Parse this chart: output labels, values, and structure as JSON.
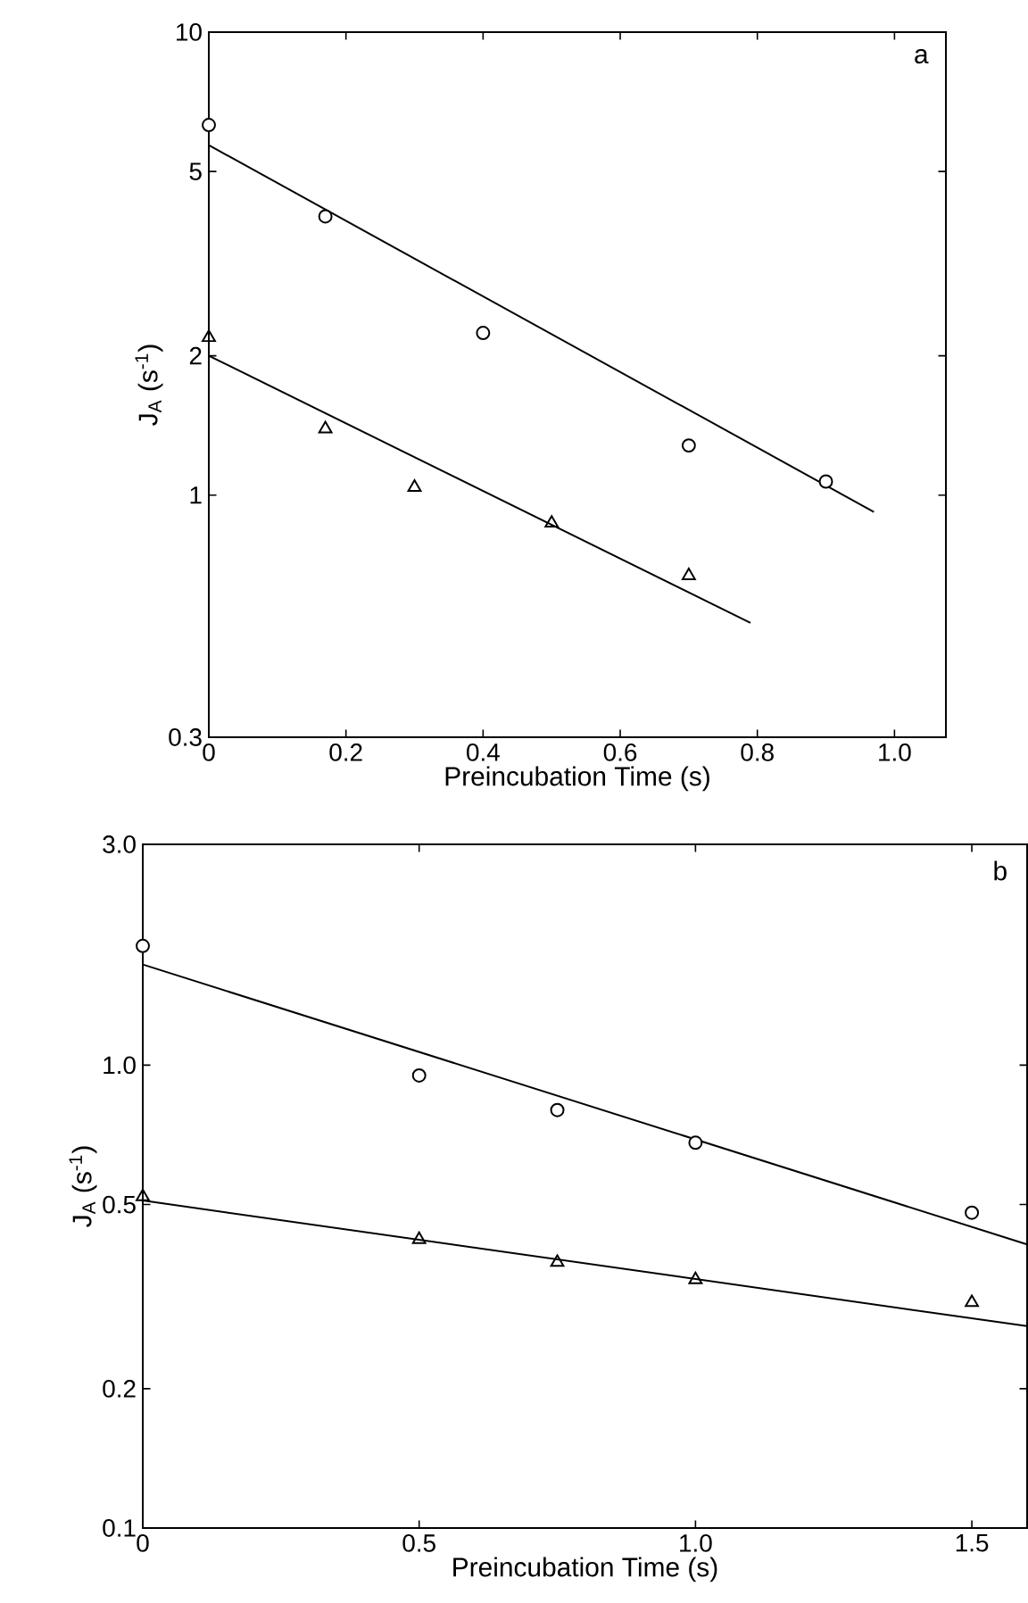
{
  "chart_data": [
    {
      "type": "scatter",
      "xlabel": "Preincubation Time (s)",
      "ylabel": "J$_{A}$ (s$^{-1}$)",
      "log": "y",
      "grid": false,
      "xlim": [
        0,
        1.075
      ],
      "ylim": [
        0.3,
        10
      ],
      "xticks": [
        0,
        0.2,
        0.4,
        0.6,
        0.8,
        {
          "value": 1,
          "label": "1.0"
        }
      ],
      "yticks": [
        0.3,
        1,
        2,
        5,
        10
      ],
      "annotations": [
        "a"
      ],
      "series": [
        {
          "marker": "circle",
          "color": "#000000",
          "x": [
            0,
            0.17,
            0.4,
            0.7,
            0.9
          ],
          "values": [
            6.3,
            4.0,
            2.24,
            1.28,
            1.07
          ]
        },
        {
          "type": "line",
          "marker": "none",
          "color": "#000000",
          "x": [
            0,
            0.97
          ],
          "values": [
            5.7,
            0.92
          ]
        },
        {
          "marker": "triangle",
          "color": "#000000",
          "x": [
            0,
            0.17,
            0.3,
            0.5,
            0.7
          ],
          "values": [
            2.19,
            1.39,
            1.04,
            0.87,
            0.67
          ]
        },
        {
          "type": "line",
          "marker": "none",
          "color": "#000000",
          "x": [
            0,
            0.79
          ],
          "values": [
            2.0,
            0.53
          ]
        }
      ]
    },
    {
      "type": "scatter",
      "xlabel": "Preincubation Time (s)",
      "ylabel": "J$_{A}$ (s$^{-1}$)",
      "log": "y",
      "grid": false,
      "xlim": [
        0,
        1.6
      ],
      "ylim": [
        0.1,
        3
      ],
      "xticks": [
        0,
        0.5,
        {
          "value": 1,
          "label": "1.0"
        },
        1.5
      ],
      "yticks": [
        0.1,
        0.2,
        0.5,
        {
          "value": 1,
          "label": "1.0"
        },
        {
          "value": 3,
          "label": "3.0"
        }
      ],
      "annotations": [
        "b"
      ],
      "series": [
        {
          "marker": "circle",
          "color": "#000000",
          "x": [
            0,
            0.5,
            0.75,
            1.0,
            1.5
          ],
          "values": [
            1.81,
            0.95,
            0.8,
            0.68,
            0.48
          ]
        },
        {
          "type": "line",
          "marker": "none",
          "color": "#000000",
          "x": [
            0,
            1.6
          ],
          "values": [
            1.65,
            0.41
          ]
        },
        {
          "marker": "triangle",
          "color": "#000000",
          "x": [
            0,
            0.5,
            0.75,
            1.0,
            1.5
          ],
          "values": [
            0.52,
            0.42,
            0.375,
            0.344,
            0.307
          ]
        },
        {
          "type": "line",
          "marker": "none",
          "color": "#000000",
          "x": [
            0,
            1.6
          ],
          "values": [
            0.51,
            0.273
          ]
        }
      ]
    }
  ]
}
